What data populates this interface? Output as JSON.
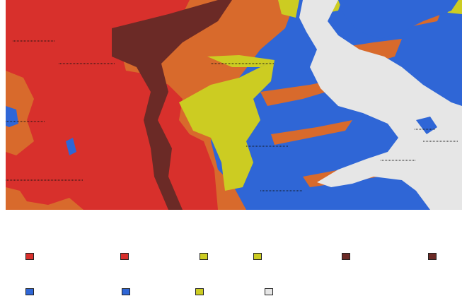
{
  "legend": {
    "title": "",
    "items": [
      {
        "label": "",
        "color": "#d8302c"
      },
      {
        "label": "",
        "color": "#d8302c"
      },
      {
        "label": "",
        "color": "#cccc22"
      },
      {
        "label": "",
        "color": "#cccc22"
      },
      {
        "label": "",
        "color": "#6b2a26"
      },
      {
        "label": "",
        "color": "#6b2a26"
      },
      {
        "label": "",
        "color": "#2f66d6"
      },
      {
        "label": "",
        "color": "#2f66d6"
      },
      {
        "label": "",
        "color": "#cccc22"
      },
      {
        "label": "",
        "color": "#e6e6e6"
      }
    ]
  },
  "map": {
    "region_colors": {
      "red": "#d8302c",
      "orange": "#d86a2c",
      "dark_red": "#6b2a26",
      "yellow": "#cccc22",
      "blue": "#2f66d6",
      "light_gray": "#e6e6e6"
    },
    "labels": [
      "",
      "",
      "",
      "",
      "",
      "",
      "",
      "",
      "",
      ""
    ]
  }
}
